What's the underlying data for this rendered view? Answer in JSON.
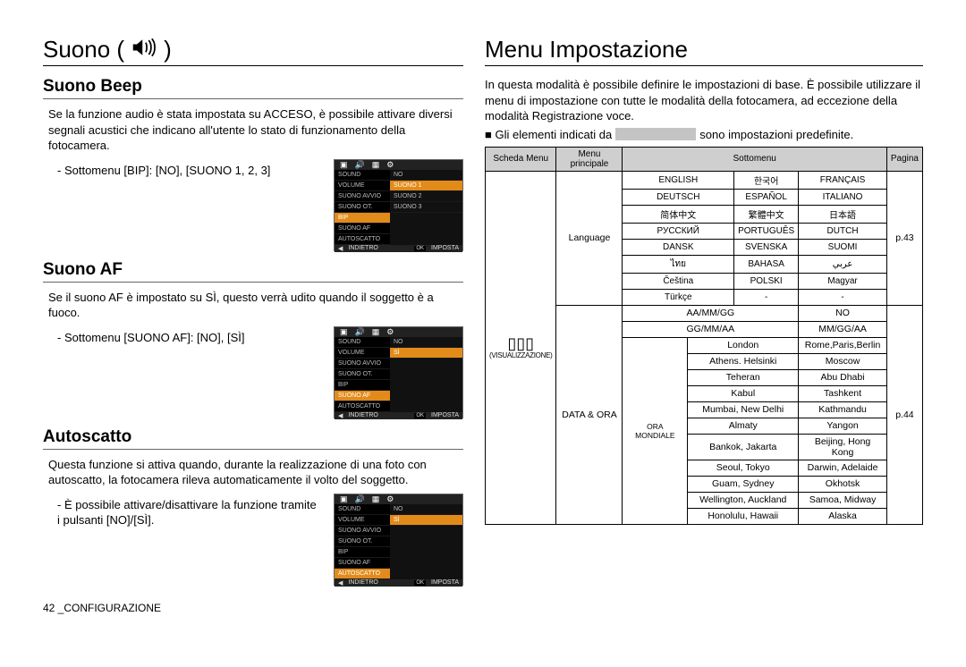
{
  "left": {
    "title": "Suono (",
    "title_close": ")",
    "icon_name": "speaker-icon",
    "sections": [
      {
        "heading": "Suono Beep",
        "paragraph": "Se la funzione audio è stata impostata su ACCESO, è possibile attivare diversi segnali acustici che indicano all'utente lo stato di funzionamento della fotocamera.",
        "submenu_note": "- Sottomenu [BIP]: [NO], [SUONO 1, 2, 3]",
        "shot": {
          "left_items": [
            "SOUND",
            "VOLUME",
            "SUONO AVVIO",
            "SUONO OT.",
            "BIP",
            "SUONO AF",
            "AUTOSCATTO"
          ],
          "highlight_left": "BIP",
          "right_items": [
            "NO",
            "SUONO 1",
            "SUONO 2",
            "SUONO 3"
          ],
          "highlight_right": "SUONO 1",
          "footer_left": "INDIETRO",
          "footer_ok": "OK",
          "footer_right": "IMPOSTA"
        }
      },
      {
        "heading": "Suono AF",
        "paragraph": "Se il suono AF è impostato su SÌ, questo verrà udito quando il soggetto è a fuoco.",
        "submenu_note": "- Sottomenu [SUONO AF]: [NO], [SÌ]",
        "shot": {
          "left_items": [
            "SOUND",
            "VOLUME",
            "SUONO AVVIO",
            "SUONO OT.",
            "BIP",
            "SUONO AF",
            "AUTOSCATTO"
          ],
          "highlight_left": "SUONO AF",
          "right_items": [
            "NO",
            "SÌ"
          ],
          "highlight_right": "SÌ",
          "footer_left": "INDIETRO",
          "footer_ok": "OK",
          "footer_right": "IMPOSTA"
        }
      },
      {
        "heading": "Autoscatto",
        "paragraph": "Questa funzione si attiva quando, durante la realizzazione di una foto con autoscatto, la fotocamera rileva automaticamente il volto del soggetto.",
        "submenu_note": "- È possibile attivare/disattivare la funzione tramite i pulsanti [NO]/[SÌ].",
        "shot": {
          "left_items": [
            "SOUND",
            "VOLUME",
            "SUONO AVVIO",
            "SUONO OT.",
            "BIP",
            "SUONO AF",
            "AUTOSCATTO"
          ],
          "highlight_left": "AUTOSCATTO",
          "right_items": [
            "NO",
            "SÌ"
          ],
          "highlight_right": "SÌ",
          "footer_left": "INDIETRO",
          "footer_ok": "OK",
          "footer_right": "IMPOSTA"
        }
      }
    ],
    "page_footer": "42 _CONFIGURAZIONE"
  },
  "right": {
    "title": "Menu Impostazione",
    "intro": "In questa modalità è possibile definire le impostazioni di base. È possibile utilizzare il menu di impostazione con tutte le modalità della fotocamera, ad eccezione della modalità Registrazione voce.",
    "bullet_pre": "Gli elementi indicati da",
    "bullet_post": "sono impostazioni predefinite.",
    "table": {
      "headers": [
        "Scheda Menu",
        "Menu principale",
        "Sottomenu",
        "Pagina"
      ],
      "tab_icon_name": "display-icon",
      "tab_label": "(VISUALIZZAZIONE)",
      "groups": [
        {
          "main": "Language",
          "page": "p.43",
          "grid_cols": 3,
          "cells": [
            "ENGLISH",
            "한국어",
            "FRANÇAIS",
            "DEUTSCH",
            "ESPAÑOL",
            "ITALIANO",
            "简体中文",
            "繁體中文",
            "日本語",
            "РУССКИЙ",
            "PORTUGUÊS",
            "DUTCH",
            "DANSK",
            "SVENSKA",
            "SUOMI",
            "ไทย",
            "BAHASA",
            "عربي",
            "Čeština",
            "POLSKI",
            "Magyar",
            "Türkçe",
            "-",
            "-"
          ]
        },
        {
          "main": "DATA & ORA",
          "page": "p.44",
          "date_rows": [
            [
              "AA/MM/GG",
              "NO"
            ],
            [
              "GG/MM/AA",
              "MM/GG/AA"
            ]
          ],
          "world_label": "ORA MONDIALE",
          "cities": [
            [
              "London",
              "Rome,Paris,Berlin"
            ],
            [
              "Athens. Helsinki",
              "Moscow"
            ],
            [
              "Teheran",
              "Abu Dhabi"
            ],
            [
              "Kabul",
              "Tashkent"
            ],
            [
              "Mumbai, New Delhi",
              "Kathmandu"
            ],
            [
              "Almaty",
              "Yangon"
            ],
            [
              "Bankok, Jakarta",
              "Beijing, Hong Kong"
            ],
            [
              "Seoul, Tokyo",
              "Darwin, Adelaide"
            ],
            [
              "Guam, Sydney",
              "Okhotsk"
            ],
            [
              "Wellington, Auckland",
              "Samoa, Midway"
            ],
            [
              "Honolulu, Hawaii",
              "Alaska"
            ]
          ]
        }
      ]
    }
  },
  "colors": {
    "header_bg": "#d0cfd0",
    "highlight": "#e38b1a",
    "border": "#000000"
  }
}
